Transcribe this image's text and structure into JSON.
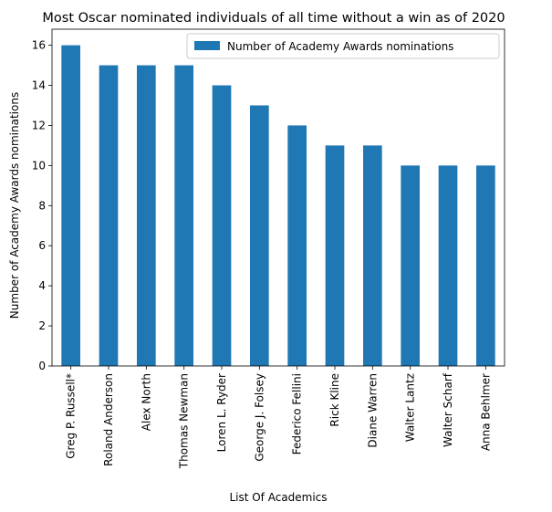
{
  "chart_data": {
    "type": "bar",
    "title": "Most Oscar nominated individuals of all time without a win as of 2020",
    "xlabel": "List Of Academics",
    "ylabel": "Number of Academy Awards nominations",
    "categories": [
      "Greg P. Russell*",
      "Roland Anderson",
      "Alex North",
      "Thomas Newman",
      "Loren L. Ryder",
      "George J. Folsey",
      "Federico Fellini",
      "Rick Kline",
      "Diane Warren",
      "Walter Lantz",
      "Walter Scharf",
      "Anna Behlmer"
    ],
    "series": [
      {
        "name": "Number of Academy Awards nominations",
        "values": [
          16,
          15,
          15,
          15,
          14,
          13,
          12,
          11,
          11,
          10,
          10,
          10
        ]
      }
    ],
    "ylim": [
      0,
      16.8
    ],
    "yticks": [
      0,
      2,
      4,
      6,
      8,
      10,
      12,
      14,
      16
    ],
    "legend_position": "top-right",
    "grid": false,
    "bar_color": "#1f77b4"
  }
}
